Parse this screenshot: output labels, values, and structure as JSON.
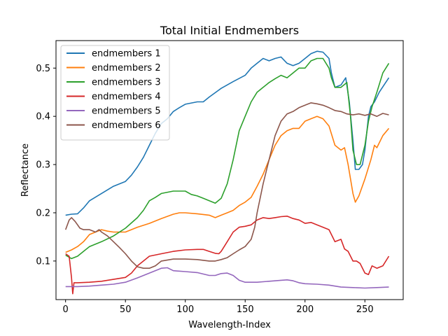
{
  "chart_data": {
    "type": "line",
    "title": "Total Initial Endmembers",
    "xlabel": "Wavelength-Index",
    "ylabel": "Reflectance",
    "xlim": [
      -8,
      282
    ],
    "ylim": [
      0.02,
      0.557
    ],
    "xticks": [
      0,
      50,
      100,
      150,
      200,
      250
    ],
    "yticks": [
      0.1,
      0.2,
      0.3,
      0.4,
      0.5
    ],
    "ytick_labels": [
      "0.1",
      "0.2",
      "0.3",
      "0.4",
      "0.5"
    ],
    "grid": false,
    "legend_position": "top-left",
    "series": [
      {
        "name": "endmembers 1",
        "color": "#1f77b4",
        "points": [
          [
            0,
            0.195
          ],
          [
            5,
            0.197
          ],
          [
            10,
            0.198
          ],
          [
            15,
            0.21
          ],
          [
            20,
            0.225
          ],
          [
            30,
            0.24
          ],
          [
            40,
            0.255
          ],
          [
            50,
            0.265
          ],
          [
            55,
            0.278
          ],
          [
            60,
            0.295
          ],
          [
            65,
            0.315
          ],
          [
            70,
            0.34
          ],
          [
            75,
            0.365
          ],
          [
            80,
            0.385
          ],
          [
            85,
            0.395
          ],
          [
            90,
            0.41
          ],
          [
            95,
            0.418
          ],
          [
            100,
            0.425
          ],
          [
            110,
            0.43
          ],
          [
            115,
            0.43
          ],
          [
            120,
            0.44
          ],
          [
            130,
            0.458
          ],
          [
            140,
            0.472
          ],
          [
            150,
            0.485
          ],
          [
            155,
            0.5
          ],
          [
            160,
            0.51
          ],
          [
            165,
            0.52
          ],
          [
            170,
            0.515
          ],
          [
            175,
            0.52
          ],
          [
            180,
            0.523
          ],
          [
            185,
            0.51
          ],
          [
            190,
            0.505
          ],
          [
            195,
            0.51
          ],
          [
            200,
            0.52
          ],
          [
            205,
            0.53
          ],
          [
            210,
            0.535
          ],
          [
            215,
            0.533
          ],
          [
            220,
            0.52
          ],
          [
            222,
            0.49
          ],
          [
            225,
            0.46
          ],
          [
            230,
            0.465
          ],
          [
            234,
            0.48
          ],
          [
            237,
            0.43
          ],
          [
            240,
            0.35
          ],
          [
            242,
            0.29
          ],
          [
            245,
            0.29
          ],
          [
            248,
            0.3
          ],
          [
            250,
            0.33
          ],
          [
            253,
            0.4
          ],
          [
            255,
            0.42
          ],
          [
            258,
            0.43
          ],
          [
            262,
            0.45
          ],
          [
            266,
            0.465
          ],
          [
            270,
            0.48
          ]
        ]
      },
      {
        "name": "endmembers 2",
        "color": "#ff7f0e",
        "points": [
          [
            0,
            0.118
          ],
          [
            5,
            0.123
          ],
          [
            10,
            0.13
          ],
          [
            15,
            0.14
          ],
          [
            20,
            0.155
          ],
          [
            25,
            0.16
          ],
          [
            30,
            0.165
          ],
          [
            35,
            0.162
          ],
          [
            40,
            0.16
          ],
          [
            50,
            0.16
          ],
          [
            60,
            0.17
          ],
          [
            70,
            0.178
          ],
          [
            80,
            0.188
          ],
          [
            90,
            0.197
          ],
          [
            95,
            0.2
          ],
          [
            100,
            0.2
          ],
          [
            110,
            0.198
          ],
          [
            120,
            0.195
          ],
          [
            125,
            0.19
          ],
          [
            130,
            0.195
          ],
          [
            135,
            0.2
          ],
          [
            140,
            0.205
          ],
          [
            145,
            0.215
          ],
          [
            150,
            0.222
          ],
          [
            155,
            0.232
          ],
          [
            160,
            0.255
          ],
          [
            165,
            0.28
          ],
          [
            170,
            0.31
          ],
          [
            175,
            0.34
          ],
          [
            180,
            0.36
          ],
          [
            185,
            0.37
          ],
          [
            190,
            0.375
          ],
          [
            195,
            0.375
          ],
          [
            200,
            0.39
          ],
          [
            205,
            0.395
          ],
          [
            210,
            0.4
          ],
          [
            215,
            0.395
          ],
          [
            220,
            0.38
          ],
          [
            225,
            0.34
          ],
          [
            230,
            0.33
          ],
          [
            233,
            0.335
          ],
          [
            236,
            0.3
          ],
          [
            240,
            0.24
          ],
          [
            242,
            0.222
          ],
          [
            245,
            0.235
          ],
          [
            250,
            0.27
          ],
          [
            255,
            0.31
          ],
          [
            258,
            0.34
          ],
          [
            260,
            0.335
          ],
          [
            265,
            0.36
          ],
          [
            270,
            0.375
          ]
        ]
      },
      {
        "name": "endmembers 3",
        "color": "#2ca02c",
        "points": [
          [
            0,
            0.112
          ],
          [
            5,
            0.105
          ],
          [
            10,
            0.11
          ],
          [
            15,
            0.12
          ],
          [
            20,
            0.13
          ],
          [
            30,
            0.14
          ],
          [
            40,
            0.152
          ],
          [
            50,
            0.168
          ],
          [
            60,
            0.19
          ],
          [
            65,
            0.205
          ],
          [
            70,
            0.225
          ],
          [
            75,
            0.232
          ],
          [
            80,
            0.24
          ],
          [
            90,
            0.245
          ],
          [
            95,
            0.245
          ],
          [
            100,
            0.245
          ],
          [
            105,
            0.238
          ],
          [
            110,
            0.235
          ],
          [
            115,
            0.23
          ],
          [
            120,
            0.225
          ],
          [
            125,
            0.22
          ],
          [
            130,
            0.23
          ],
          [
            135,
            0.26
          ],
          [
            140,
            0.31
          ],
          [
            145,
            0.37
          ],
          [
            150,
            0.4
          ],
          [
            155,
            0.43
          ],
          [
            160,
            0.45
          ],
          [
            165,
            0.46
          ],
          [
            170,
            0.47
          ],
          [
            175,
            0.478
          ],
          [
            180,
            0.485
          ],
          [
            185,
            0.48
          ],
          [
            190,
            0.49
          ],
          [
            195,
            0.5
          ],
          [
            200,
            0.5
          ],
          [
            205,
            0.515
          ],
          [
            210,
            0.52
          ],
          [
            215,
            0.52
          ],
          [
            220,
            0.5
          ],
          [
            222,
            0.48
          ],
          [
            225,
            0.46
          ],
          [
            230,
            0.46
          ],
          [
            235,
            0.47
          ],
          [
            238,
            0.4
          ],
          [
            240,
            0.33
          ],
          [
            243,
            0.3
          ],
          [
            246,
            0.3
          ],
          [
            250,
            0.34
          ],
          [
            253,
            0.39
          ],
          [
            256,
            0.42
          ],
          [
            260,
            0.45
          ],
          [
            265,
            0.49
          ],
          [
            270,
            0.51
          ]
        ]
      },
      {
        "name": "endmembers 4",
        "color": "#d62728",
        "points": [
          [
            0,
            0.115
          ],
          [
            3,
            0.11
          ],
          [
            5,
            0.065
          ],
          [
            6,
            0.032
          ],
          [
            7,
            0.055
          ],
          [
            10,
            0.055
          ],
          [
            20,
            0.056
          ],
          [
            30,
            0.058
          ],
          [
            40,
            0.062
          ],
          [
            50,
            0.066
          ],
          [
            55,
            0.075
          ],
          [
            60,
            0.09
          ],
          [
            65,
            0.1
          ],
          [
            70,
            0.11
          ],
          [
            80,
            0.115
          ],
          [
            90,
            0.12
          ],
          [
            100,
            0.123
          ],
          [
            110,
            0.124
          ],
          [
            115,
            0.124
          ],
          [
            120,
            0.12
          ],
          [
            125,
            0.116
          ],
          [
            128,
            0.115
          ],
          [
            130,
            0.12
          ],
          [
            135,
            0.14
          ],
          [
            140,
            0.16
          ],
          [
            145,
            0.17
          ],
          [
            150,
            0.172
          ],
          [
            155,
            0.175
          ],
          [
            160,
            0.185
          ],
          [
            165,
            0.19
          ],
          [
            170,
            0.188
          ],
          [
            175,
            0.19
          ],
          [
            180,
            0.192
          ],
          [
            185,
            0.193
          ],
          [
            190,
            0.188
          ],
          [
            195,
            0.185
          ],
          [
            200,
            0.178
          ],
          [
            205,
            0.18
          ],
          [
            210,
            0.175
          ],
          [
            215,
            0.17
          ],
          [
            220,
            0.165
          ],
          [
            223,
            0.15
          ],
          [
            225,
            0.14
          ],
          [
            230,
            0.145
          ],
          [
            233,
            0.125
          ],
          [
            236,
            0.12
          ],
          [
            240,
            0.1
          ],
          [
            243,
            0.1
          ],
          [
            246,
            0.095
          ],
          [
            250,
            0.075
          ],
          [
            253,
            0.072
          ],
          [
            256,
            0.09
          ],
          [
            260,
            0.085
          ],
          [
            265,
            0.09
          ],
          [
            270,
            0.11
          ]
        ]
      },
      {
        "name": "endmembers 5",
        "color": "#9467bd",
        "points": [
          [
            0,
            0.047
          ],
          [
            10,
            0.047
          ],
          [
            20,
            0.048
          ],
          [
            30,
            0.05
          ],
          [
            40,
            0.052
          ],
          [
            50,
            0.056
          ],
          [
            60,
            0.065
          ],
          [
            70,
            0.075
          ],
          [
            80,
            0.085
          ],
          [
            85,
            0.086
          ],
          [
            90,
            0.08
          ],
          [
            100,
            0.078
          ],
          [
            110,
            0.076
          ],
          [
            120,
            0.07
          ],
          [
            125,
            0.07
          ],
          [
            130,
            0.074
          ],
          [
            135,
            0.075
          ],
          [
            140,
            0.07
          ],
          [
            145,
            0.06
          ],
          [
            150,
            0.056
          ],
          [
            160,
            0.056
          ],
          [
            170,
            0.058
          ],
          [
            180,
            0.06
          ],
          [
            185,
            0.061
          ],
          [
            190,
            0.059
          ],
          [
            195,
            0.055
          ],
          [
            200,
            0.053
          ],
          [
            210,
            0.052
          ],
          [
            220,
            0.05
          ],
          [
            230,
            0.046
          ],
          [
            240,
            0.045
          ],
          [
            250,
            0.044
          ],
          [
            260,
            0.045
          ],
          [
            270,
            0.046
          ]
        ]
      },
      {
        "name": "endmembers 6",
        "color": "#8c564b",
        "points": [
          [
            0,
            0.165
          ],
          [
            3,
            0.185
          ],
          [
            5,
            0.19
          ],
          [
            8,
            0.182
          ],
          [
            12,
            0.168
          ],
          [
            15,
            0.165
          ],
          [
            20,
            0.165
          ],
          [
            25,
            0.16
          ],
          [
            28,
            0.165
          ],
          [
            30,
            0.16
          ],
          [
            35,
            0.152
          ],
          [
            40,
            0.14
          ],
          [
            45,
            0.128
          ],
          [
            50,
            0.115
          ],
          [
            55,
            0.1
          ],
          [
            60,
            0.088
          ],
          [
            65,
            0.085
          ],
          [
            70,
            0.085
          ],
          [
            75,
            0.09
          ],
          [
            80,
            0.1
          ],
          [
            90,
            0.104
          ],
          [
            100,
            0.104
          ],
          [
            110,
            0.103
          ],
          [
            120,
            0.1
          ],
          [
            125,
            0.1
          ],
          [
            130,
            0.103
          ],
          [
            135,
            0.107
          ],
          [
            140,
            0.115
          ],
          [
            145,
            0.123
          ],
          [
            150,
            0.13
          ],
          [
            155,
            0.145
          ],
          [
            158,
            0.17
          ],
          [
            160,
            0.2
          ],
          [
            165,
            0.26
          ],
          [
            170,
            0.31
          ],
          [
            175,
            0.36
          ],
          [
            180,
            0.39
          ],
          [
            185,
            0.405
          ],
          [
            190,
            0.41
          ],
          [
            195,
            0.418
          ],
          [
            200,
            0.423
          ],
          [
            205,
            0.428
          ],
          [
            210,
            0.426
          ],
          [
            215,
            0.423
          ],
          [
            220,
            0.418
          ],
          [
            225,
            0.412
          ],
          [
            230,
            0.41
          ],
          [
            235,
            0.405
          ],
          [
            240,
            0.403
          ],
          [
            245,
            0.405
          ],
          [
            250,
            0.402
          ],
          [
            255,
            0.405
          ],
          [
            260,
            0.4
          ],
          [
            265,
            0.406
          ],
          [
            270,
            0.403
          ]
        ]
      }
    ]
  }
}
